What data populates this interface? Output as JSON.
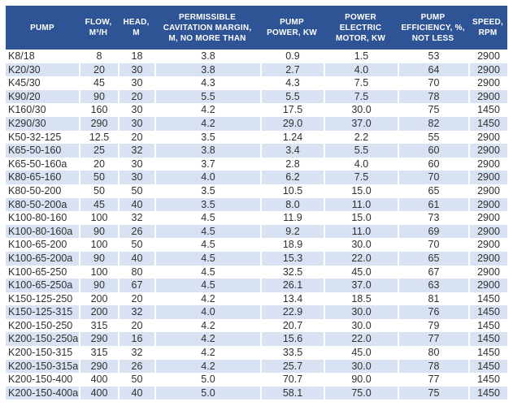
{
  "colors": {
    "header_bg": "#2F5496",
    "header_text": "#FFFFFF",
    "row_bg": "#FFFFFF",
    "row_alt_bg": "#D9E2F3",
    "body_text": "#303030"
  },
  "table": {
    "columns": [
      {
        "key": "pump",
        "label": "PUMP"
      },
      {
        "key": "flow",
        "label": "FLOW,\nM³/H"
      },
      {
        "key": "head",
        "label": "HEAD,\nM"
      },
      {
        "key": "cavitation_margin",
        "label": "PERMISSIBLE\nCAVITATION MARGIN,\nM, NO MORE THAN"
      },
      {
        "key": "pump_power",
        "label": "PUMP\nPOWER, KW"
      },
      {
        "key": "motor_power",
        "label": "POWER\nELECTRIC\nMOTOR, KW"
      },
      {
        "key": "efficiency",
        "label": "PUMP\nEFFICIENCY, %,\nNOT LESS"
      },
      {
        "key": "speed",
        "label": "SPEED,\nRPM"
      }
    ],
    "rows": [
      [
        "K8/18",
        "8",
        "18",
        "3.8",
        "0.9",
        "1.5",
        "53",
        "2900"
      ],
      [
        "K20/30",
        "20",
        "30",
        "3.8",
        "2.7",
        "4.0",
        "64",
        "2900"
      ],
      [
        "K45/30",
        "45",
        "30",
        "4.3",
        "4.3",
        "7.5",
        "70",
        "2900"
      ],
      [
        "K90/20",
        "90",
        "20",
        "5.5",
        "5.5",
        "7.5",
        "78",
        "2900"
      ],
      [
        "K160/30",
        "160",
        "30",
        "4.2",
        "17.5",
        "30.0",
        "75",
        "1450"
      ],
      [
        "K290/30",
        "290",
        "30",
        "4.2",
        "29.0",
        "37.0",
        "82",
        "1450"
      ],
      [
        "K50-32-125",
        "12.5",
        "20",
        "3.5",
        "1.24",
        "2.2",
        "55",
        "2900"
      ],
      [
        "K65-50-160",
        "25",
        "32",
        "3.8",
        "3.4",
        "5.5",
        "60",
        "2900"
      ],
      [
        "K65-50-160a",
        "20",
        "30",
        "3.7",
        "2.8",
        "4.0",
        "60",
        "2900"
      ],
      [
        "K80-65-160",
        "50",
        "30",
        "4.0",
        "6.2",
        "7.5",
        "70",
        "2900"
      ],
      [
        "K80-50-200",
        "50",
        "50",
        "3.5",
        "10.5",
        "15.0",
        "65",
        "2900"
      ],
      [
        "K80-50-200a",
        "45",
        "40",
        "3.5",
        "8.0",
        "11.0",
        "61",
        "2900"
      ],
      [
        "K100-80-160",
        "100",
        "32",
        "4.5",
        "11.9",
        "15.0",
        "73",
        "2900"
      ],
      [
        "K100-80-160a",
        "90",
        "26",
        "4.5",
        "9.2",
        "11.0",
        "69",
        "2900"
      ],
      [
        "K100-65-200",
        "100",
        "50",
        "4.5",
        "18.9",
        "30.0",
        "70",
        "2900"
      ],
      [
        "K100-65-200a",
        "90",
        "40",
        "4.5",
        "15.3",
        "22.0",
        "65",
        "2900"
      ],
      [
        "K100-65-250",
        "100",
        "80",
        "4.5",
        "32.5",
        "45.0",
        "67",
        "2900"
      ],
      [
        "K100-65-250a",
        "90",
        "67",
        "4.5",
        "26.1",
        "37.0",
        "63",
        "2900"
      ],
      [
        "K150-125-250",
        "200",
        "20",
        "4.2",
        "13.4",
        "18.5",
        "81",
        "1450"
      ],
      [
        "K150-125-315",
        "200",
        "32",
        "4.0",
        "22.9",
        "30.0",
        "76",
        "1450"
      ],
      [
        "K200-150-250",
        "315",
        "20",
        "4.2",
        "20.7",
        "30.0",
        "79",
        "1450"
      ],
      [
        "K200-150-250a",
        "290",
        "16",
        "4.2",
        "15.6",
        "22.0",
        "77",
        "1450"
      ],
      [
        "K200-150-315",
        "315",
        "32",
        "4.2",
        "33.5",
        "45.0",
        "80",
        "1450"
      ],
      [
        "K200-150-315a",
        "290",
        "26",
        "4.2",
        "25.7",
        "30.0",
        "78",
        "1450"
      ],
      [
        "K200-150-400",
        "400",
        "50",
        "5.0",
        "70.7",
        "90.0",
        "77",
        "1450"
      ],
      [
        "K200-150-400a",
        "400",
        "40",
        "5.0",
        "58.1",
        "75.0",
        "75",
        "1450"
      ]
    ]
  }
}
